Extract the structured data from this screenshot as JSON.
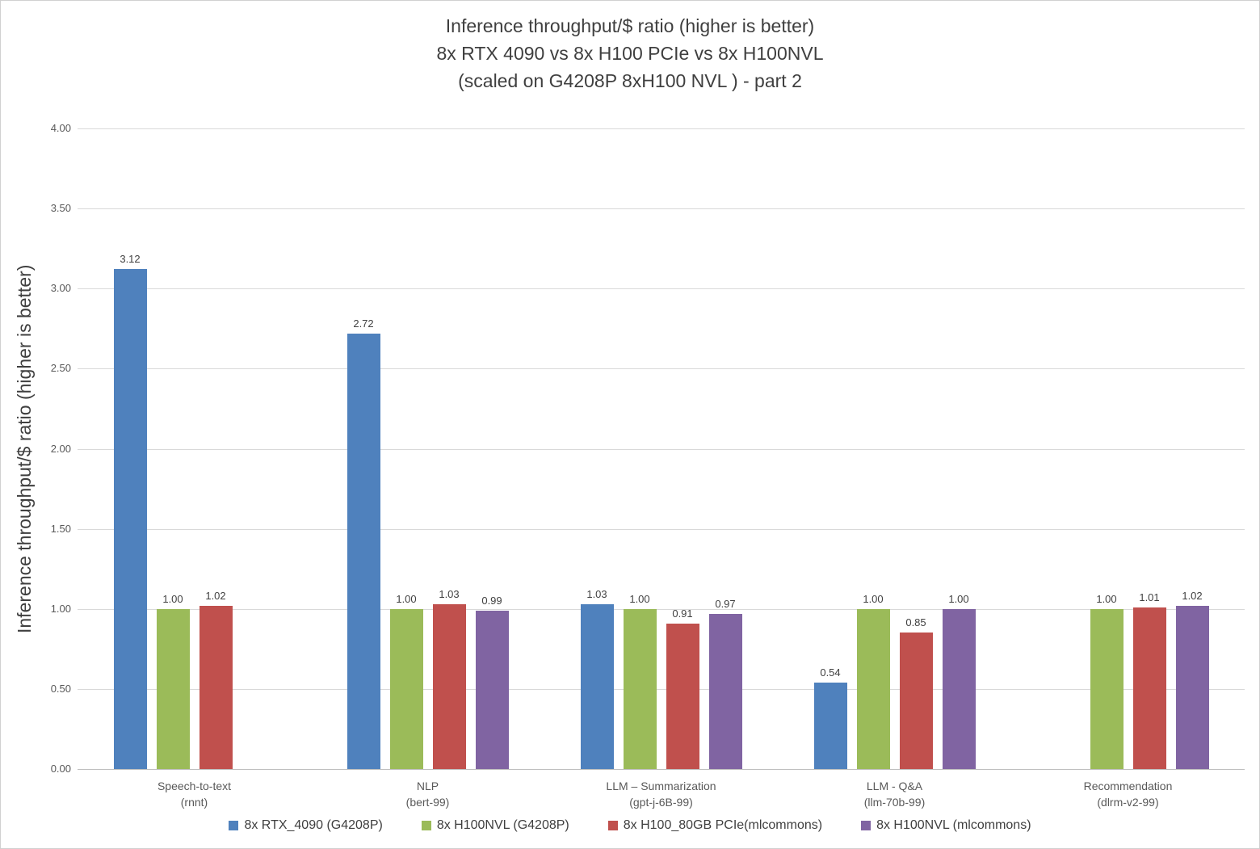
{
  "chart_data": {
    "type": "bar",
    "title_lines": [
      "Inference throughput/$ ratio (higher is better)",
      "8x RTX 4090 vs 8x H100 PCIe vs 8x H100NVL",
      "(scaled on G4208P 8xH100 NVL ) - part 2"
    ],
    "title": "Inference throughput/$ ratio (higher is better) 8x RTX 4090 vs 8x H100 PCIe vs 8x H100NVL (scaled on G4208P 8xH100 NVL ) - part 2",
    "xlabel": "",
    "ylabel": "Inference throughput/$ ratio (higher is better)",
    "ylim": [
      0,
      4.0
    ],
    "ytick_step": 0.5,
    "ytick_labels": [
      "0.00",
      "0.50",
      "1.00",
      "1.50",
      "2.00",
      "2.50",
      "3.00",
      "3.50",
      "4.00"
    ],
    "grid": true,
    "legend_position": "bottom",
    "categories": [
      {
        "label": "Speech-to-text",
        "sub": "(rnnt)"
      },
      {
        "label": "NLP",
        "sub": "(bert-99)"
      },
      {
        "label": "LLM – Summarization",
        "sub": "(gpt-j-6B-99)"
      },
      {
        "label": "LLM - Q&A",
        "sub": "(llm-70b-99)"
      },
      {
        "label": "Recommendation",
        "sub": "(dlrm-v2-99)"
      }
    ],
    "series": [
      {
        "name": "8x RTX_4090 (G4208P)",
        "color": "#4F81BD",
        "values": [
          3.12,
          2.72,
          1.03,
          0.54,
          null
        ]
      },
      {
        "name": "8x H100NVL (G4208P)",
        "color": "#9BBB59",
        "values": [
          1.0,
          1.0,
          1.0,
          1.0,
          1.0
        ]
      },
      {
        "name": "8x H100_80GB PCIe(mlcommons)",
        "color": "#C0504D",
        "values": [
          1.02,
          1.03,
          0.91,
          0.85,
          1.01
        ]
      },
      {
        "name": "8x H100NVL (mlcommons)",
        "color": "#8064A2",
        "values": [
          null,
          0.99,
          0.97,
          1.0,
          1.02
        ]
      }
    ],
    "colors": {
      "gridline": "#d9d9d9",
      "axis_line": "#bfbfbf",
      "title_text": "#3f3f3f",
      "tick_text": "#595959",
      "value_label_text": "#404040",
      "background": "#ffffff"
    }
  }
}
